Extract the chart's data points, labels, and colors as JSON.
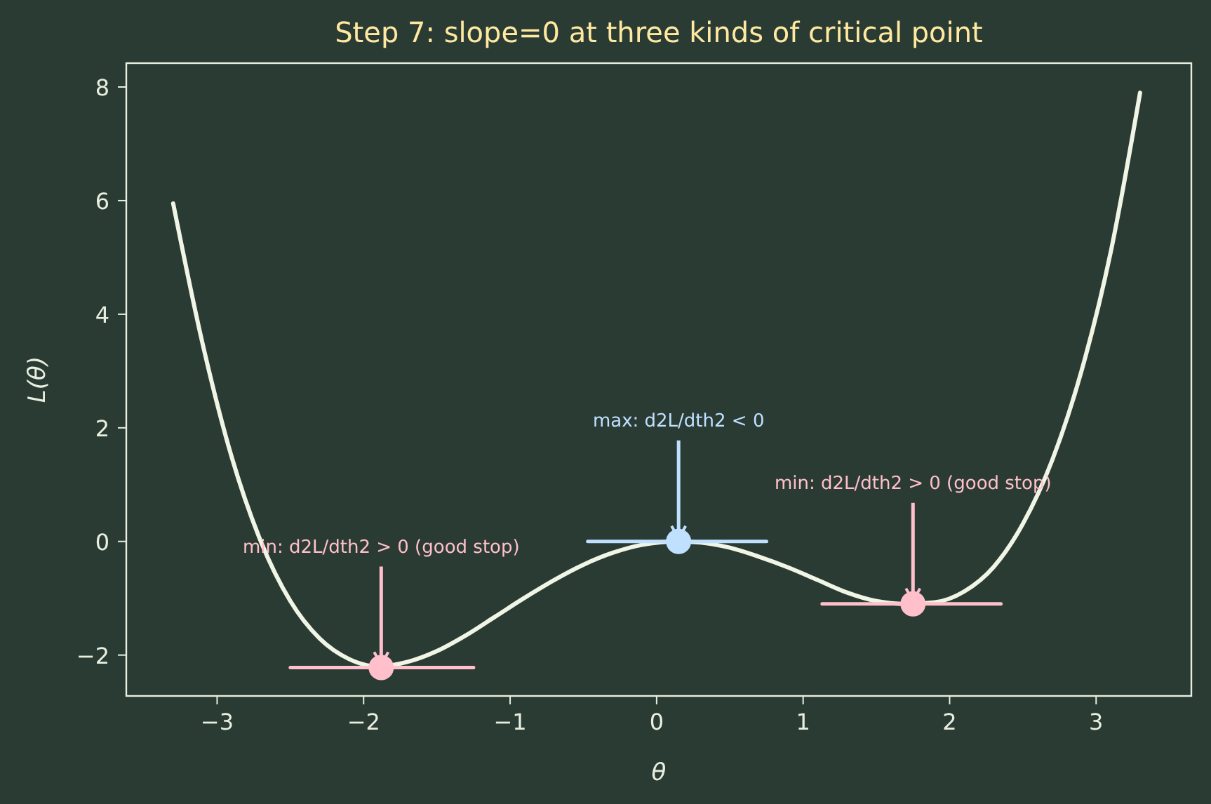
{
  "chart_data": {
    "type": "line",
    "title": "Step 7: slope=0 at three kinds of critical point",
    "xlabel": "θ",
    "ylabel": "L(θ)",
    "xlim": [
      -3.62,
      3.65
    ],
    "ylim": [
      -2.72,
      8.42
    ],
    "xticks": [
      -3,
      -2,
      -1,
      0,
      1,
      2,
      3
    ],
    "yticks": [
      -2,
      0,
      2,
      4,
      6,
      8
    ],
    "grid": false,
    "series": [
      {
        "color": "#f0f5e6",
        "marker": "none",
        "x": [
          -3.3,
          -3.1,
          -2.9,
          -2.7,
          -2.5,
          -2.3,
          -2.1,
          -1.9,
          -1.7,
          -1.5,
          -1.3,
          -1.1,
          -0.9,
          -0.7,
          -0.5,
          -0.3,
          -0.1,
          0.15,
          0.3,
          0.5,
          0.7,
          0.9,
          1.1,
          1.3,
          1.5,
          1.7,
          1.9,
          2.1,
          2.3,
          2.5,
          2.7,
          2.9,
          3.1,
          3.3
        ],
        "values": [
          5.95,
          3.49,
          1.48,
          -0.01,
          -1.05,
          -1.71,
          -2.07,
          -2.2,
          -2.12,
          -1.93,
          -1.65,
          -1.32,
          -0.99,
          -0.68,
          -0.41,
          -0.2,
          -0.06,
          0.0,
          -0.02,
          -0.11,
          -0.27,
          -0.46,
          -0.68,
          -0.9,
          -1.05,
          -1.1,
          -1.07,
          -0.88,
          -0.45,
          0.31,
          1.43,
          3.0,
          5.1,
          7.9
        ]
      },
      {
        "type": "line",
        "color": "#ffc0cb",
        "marker": "none",
        "x": [
          -2.5,
          -1.25
        ],
        "values": [
          -2.22,
          -2.22
        ]
      },
      {
        "type": "line",
        "color": "#bfe0ff",
        "marker": "none",
        "x": [
          -0.47,
          0.75
        ],
        "values": [
          0,
          0
        ]
      },
      {
        "type": "line",
        "color": "#ffc0cb",
        "marker": "none",
        "x": [
          1.13,
          2.35
        ],
        "values": [
          -1.1,
          -1.1
        ]
      },
      {
        "type": "scatter",
        "color": "#ffc0cb",
        "marker": "circle",
        "x": [
          -1.88
        ],
        "values": [
          -2.22
        ]
      },
      {
        "type": "scatter",
        "color": "#bfe0ff",
        "marker": "circle",
        "x": [
          0.15
        ],
        "values": [
          0
        ]
      },
      {
        "type": "scatter",
        "color": "#ffc0cb",
        "marker": "circle",
        "x": [
          1.75
        ],
        "values": [
          -1.1
        ]
      }
    ],
    "annotations": [
      {
        "text": "min: d2L/dth2 > 0 (good stop)",
        "x": -1.88,
        "y": -2.22
      },
      {
        "text": "max: d2L/dth2 < 0",
        "x": 0.15,
        "y": 0
      },
      {
        "text": "min: d2L/dth2 > 0 (good stop)",
        "x": 1.75,
        "y": -1.1
      }
    ]
  }
}
